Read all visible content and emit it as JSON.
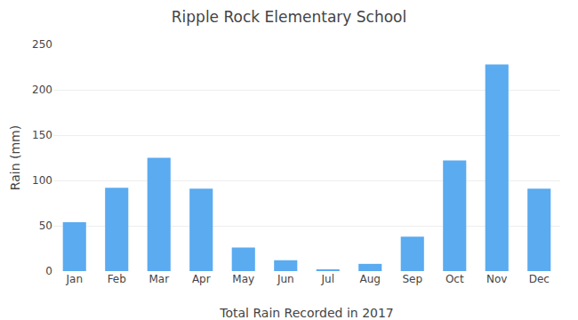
{
  "chart_data": {
    "type": "bar",
    "title": "Ripple Rock Elementary School",
    "xlabel": "Total Rain Recorded in 2017",
    "ylabel": "Rain (mm)",
    "categories": [
      "Jan",
      "Feb",
      "Mar",
      "Apr",
      "May",
      "Jun",
      "Jul",
      "Aug",
      "Sep",
      "Oct",
      "Nov",
      "Dec"
    ],
    "values": [
      54,
      92,
      125,
      91,
      26,
      12,
      2,
      8,
      38,
      122,
      228,
      91
    ],
    "color": "#5aabf0",
    "ylim": [
      0,
      250
    ],
    "yticks": [
      0,
      50,
      100,
      150,
      200,
      250
    ],
    "grid": true
  }
}
